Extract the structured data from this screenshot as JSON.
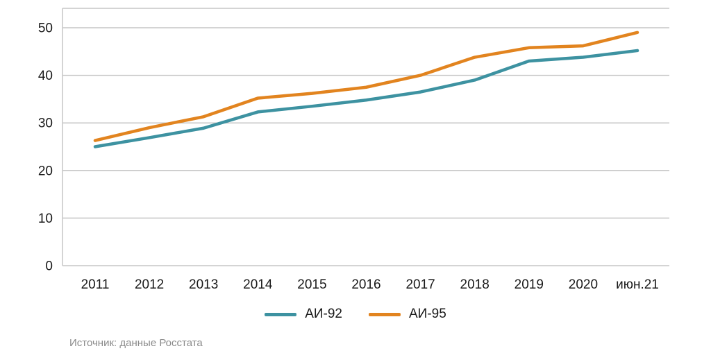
{
  "chart_data": {
    "type": "line",
    "x": [
      "2011",
      "2012",
      "2013",
      "2014",
      "2015",
      "2016",
      "2017",
      "2018",
      "2019",
      "2020",
      "июн.21"
    ],
    "series": [
      {
        "name": "АИ-92",
        "color": "#3d92a1",
        "values": [
          25.0,
          26.9,
          28.9,
          32.3,
          33.5,
          34.8,
          36.5,
          39.0,
          43.0,
          43.8,
          45.2
        ]
      },
      {
        "name": "АИ-95",
        "color": "#e2841f",
        "values": [
          26.3,
          29.0,
          31.3,
          35.2,
          36.2,
          37.5,
          40.0,
          43.8,
          45.8,
          46.2,
          49.0
        ]
      }
    ],
    "title": "",
    "xlabel": "",
    "ylabel": "",
    "ylim": [
      0,
      50
    ],
    "yticks": [
      0,
      10,
      20,
      30,
      40,
      50
    ],
    "grid": true,
    "legend_position": "bottom"
  },
  "source": {
    "text": "Источник: данные Росстата"
  },
  "colors": {
    "grid": "#c6c6c6",
    "axis": "#c6c6c6",
    "tick_text": "#1a1a1a",
    "source_text": "#8a8a8a",
    "background": "#ffffff"
  }
}
